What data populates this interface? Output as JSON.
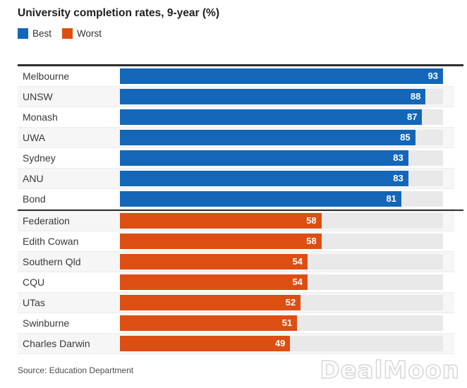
{
  "title": "University completion rates, 9-year (%)",
  "legend": {
    "items": [
      {
        "label": "Best",
        "color": "#1467b8"
      },
      {
        "label": "Worst",
        "color": "#dd4e13"
      }
    ]
  },
  "chart_data": {
    "type": "bar",
    "orientation": "horizontal",
    "title": "University completion rates, 9-year (%)",
    "unit": "%",
    "xlim": [
      0,
      93
    ],
    "grid": false,
    "legend_position": "top-left",
    "value_labels": "inside-end",
    "series": [
      {
        "name": "Best",
        "color": "#1467b8",
        "points": [
          {
            "label": "Melbourne",
            "value": 93
          },
          {
            "label": "UNSW",
            "value": 88
          },
          {
            "label": "Monash",
            "value": 87
          },
          {
            "label": "UWA",
            "value": 85
          },
          {
            "label": "Sydney",
            "value": 83
          },
          {
            "label": "ANU",
            "value": 83
          },
          {
            "label": "Bond",
            "value": 81
          }
        ]
      },
      {
        "name": "Worst",
        "color": "#dd4e13",
        "points": [
          {
            "label": "Federation",
            "value": 58
          },
          {
            "label": "Edith Cowan",
            "value": 58
          },
          {
            "label": "Southern Qld",
            "value": 54
          },
          {
            "label": "CQU",
            "value": 54
          },
          {
            "label": "UTas",
            "value": 52
          },
          {
            "label": "Swinburne",
            "value": 51
          },
          {
            "label": "Charles Darwin",
            "value": 49
          }
        ]
      }
    ]
  },
  "source": "Source: Education Department",
  "watermark": "DealMoon",
  "colors": {
    "best_bar": "#1467b8",
    "worst_bar": "#dd4e13",
    "bar_track": "#e9e9e9",
    "row_stripe": "#f6f6f6",
    "divider": "#2e2e2e",
    "title_text": "#1f1f1f",
    "label_text": "#3a3a3a",
    "source_text": "#4d4d4d"
  }
}
